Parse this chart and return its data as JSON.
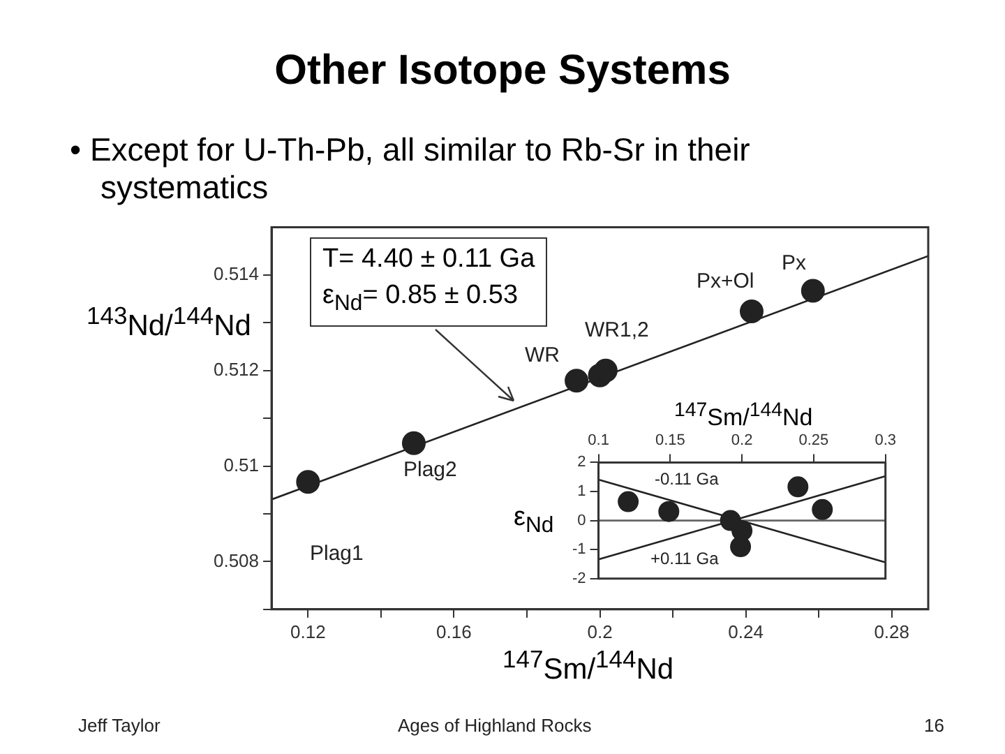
{
  "chart_data": [
    {
      "type": "scatter",
      "title": "Other Isotope Systems",
      "subtitle": "• Except for U-Th-Pb, all similar to Rb-Sr in their systematics",
      "xlabel": "$^{147}$Sm/$^{144}$Nd",
      "ylabel": "$^{143}$Nd/$^{144}$Nd",
      "xlim": [
        0.11,
        0.29
      ],
      "xticks": [
        0.12,
        {
          "value": 0.14,
          "label": null
        },
        0.16,
        {
          "value": 0.18,
          "label": null
        },
        0.2,
        {
          "value": 0.22,
          "label": null
        },
        0.24,
        {
          "value": 0.26,
          "label": null
        },
        0.28
      ],
      "ylim": [
        0.507,
        0.515
      ],
      "yticks": [
        {
          "value": 0.507,
          "label": null
        },
        0.508,
        {
          "value": 0.509,
          "label": null
        },
        0.51,
        {
          "value": 0.511,
          "label": null
        },
        0.512,
        {
          "value": 0.513,
          "label": null
        },
        0.514
      ],
      "grid": false,
      "marker": "circle",
      "series": [
        {
          "color": "#222222",
          "x": [
            0.12,
            0.149,
            0.1936,
            0.2,
            0.2016,
            0.2416,
            0.2584
          ],
          "values": [
            0.50967,
            0.51048,
            0.51179,
            0.5119,
            0.512,
            0.51324,
            0.51367
          ]
        },
        {
          "type": "line",
          "marker": "none",
          "color": "#222222",
          "x": [
            0.11,
            0.29
          ],
          "values": [
            0.5093,
            0.5144
          ]
        }
      ],
      "annotations": [
        "T= 4.40 ± 0.11 Ga",
        "ε$_{Nd}$= 0.85 ± 0.53",
        "Plag1",
        "Plag2",
        "WR",
        "WR1,2",
        "Px+Ol",
        "Px",
        "Jeff Taylor",
        "Ages of Highland Rocks",
        "16"
      ]
    },
    {
      "type": "scatter",
      "xlabel": "$^{147}$Sm/$^{144}$Nd",
      "ylabel": "ε$_{Nd}$",
      "xlim": [
        0.1,
        0.3
      ],
      "xticks": [
        0.1,
        0.15,
        0.2,
        0.25,
        0.3
      ],
      "ylim": [
        -2,
        2
      ],
      "yticks": [
        -2,
        -1,
        0,
        1,
        2
      ],
      "grid": false,
      "marker": "circle",
      "series": [
        {
          "color": "#222222",
          "x": [
            0.1207,
            0.149,
            0.192,
            0.2,
            0.199,
            0.239,
            0.256
          ],
          "values": [
            0.65,
            0.31,
            0.0,
            -0.35,
            -0.9,
            1.16,
            0.38
          ]
        },
        {
          "type": "line",
          "marker": "none",
          "color": "#222222",
          "x": [
            0.1,
            0.3
          ],
          "values": [
            1.41,
            -1.44
          ]
        },
        {
          "type": "line",
          "marker": "none",
          "color": "#222222",
          "x": [
            0.1,
            0.3
          ],
          "values": [
            -1.34,
            1.53
          ]
        },
        {
          "type": "line",
          "marker": "none",
          "color": "#666666",
          "x": [
            0.1,
            0.3
          ],
          "values": [
            0,
            0
          ]
        }
      ],
      "annotations": [
        "-0.11 Ga",
        "+0.11 Ga"
      ]
    }
  ]
}
